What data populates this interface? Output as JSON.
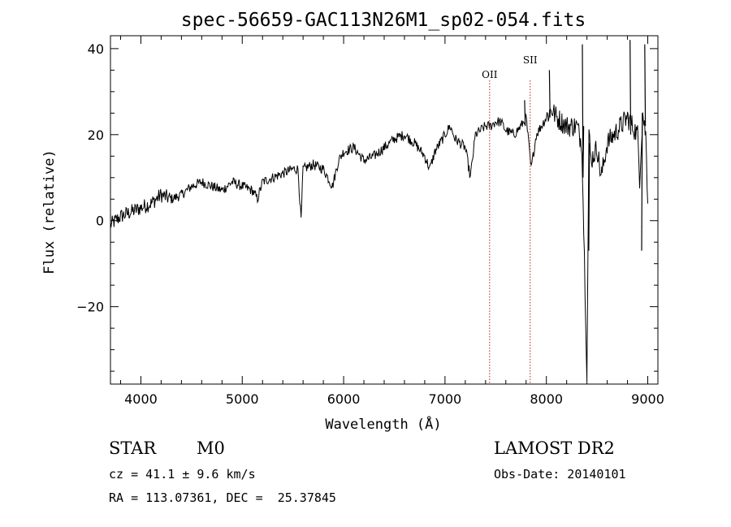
{
  "chart_data": {
    "type": "line",
    "title": "spec-56659-GAC113N26M1_sp02-054.fits",
    "xlabel": "Wavelength (Å)",
    "ylabel": "Flux (relative)",
    "xlim": [
      3700,
      9100
    ],
    "ylim": [
      -38,
      43
    ],
    "x_ticks": [
      4000,
      5000,
      6000,
      7000,
      8000,
      9000
    ],
    "y_ticks": [
      -20,
      0,
      20,
      40
    ],
    "grid": false,
    "series": [
      {
        "color": "#000000",
        "x": [
          3700,
          3800,
          3900,
          4000,
          4100,
          4200,
          4300,
          4400,
          4500,
          4600,
          4700,
          4800,
          4900,
          5000,
          5100,
          5150,
          5200,
          5300,
          5400,
          5500,
          5550,
          5580,
          5600,
          5700,
          5800,
          5890,
          5950,
          6000,
          6100,
          6200,
          6300,
          6400,
          6500,
          6600,
          6700,
          6800,
          6850,
          6900,
          7000,
          7050,
          7100,
          7200,
          7250,
          7280,
          7300,
          7350,
          7400,
          7450,
          7500,
          7550,
          7600,
          7680,
          7750,
          7800,
          7850,
          7900,
          8000,
          8050,
          8100,
          8200,
          8300,
          8350,
          8400,
          8420,
          8440,
          8500,
          8540,
          8600,
          8700,
          8800,
          8850,
          8900,
          8920,
          8950,
          8980,
          9000
        ],
        "values": [
          -1,
          1,
          2,
          3,
          4,
          6,
          5,
          6,
          8,
          9,
          8,
          7,
          9,
          8,
          7,
          5,
          9,
          10,
          11,
          12,
          12,
          0,
          12,
          13,
          12,
          8,
          14,
          16,
          17,
          14,
          15,
          17,
          19,
          20,
          18,
          15,
          12,
          16,
          20,
          22,
          19,
          17,
          10,
          16,
          20,
          21,
          22,
          22,
          23,
          23,
          21,
          20,
          22,
          24,
          12,
          20,
          24,
          26,
          24,
          22,
          22,
          18,
          -35,
          20,
          14,
          17,
          10,
          18,
          21,
          24,
          22,
          20,
          10,
          25,
          20,
          4
        ],
        "spikes": [
          {
            "x": 8355,
            "values": [
              41,
              10,
              22
            ]
          },
          {
            "x": 8418,
            "values": [
              -7,
              18
            ]
          },
          {
            "x": 8825,
            "values": [
              42,
              20
            ]
          },
          {
            "x": 8940,
            "values": [
              -7,
              25
            ]
          },
          {
            "x": 8970,
            "values": [
              41,
              22
            ]
          },
          {
            "x": 8030,
            "values": [
              35,
              24
            ]
          },
          {
            "x": 7785,
            "values": [
              28,
              22
            ]
          }
        ]
      }
    ],
    "annotations": [
      {
        "label": "OII",
        "x": 7440,
        "style": "dotted-vertical",
        "color": "#b22222"
      },
      {
        "label": "SII",
        "x": 7840,
        "style": "dotted-vertical",
        "color": "#b22222"
      }
    ]
  },
  "info": {
    "class_label": "STAR",
    "subclass_label": "M0",
    "survey_label": "LAMOST DR2",
    "redshift_text": "cz = 41.1 ± 9.6 km/s",
    "obs_date_text": "Obs-Date: 20140101",
    "coords_text": "RA = 113.07361, DEC =  25.37845"
  }
}
